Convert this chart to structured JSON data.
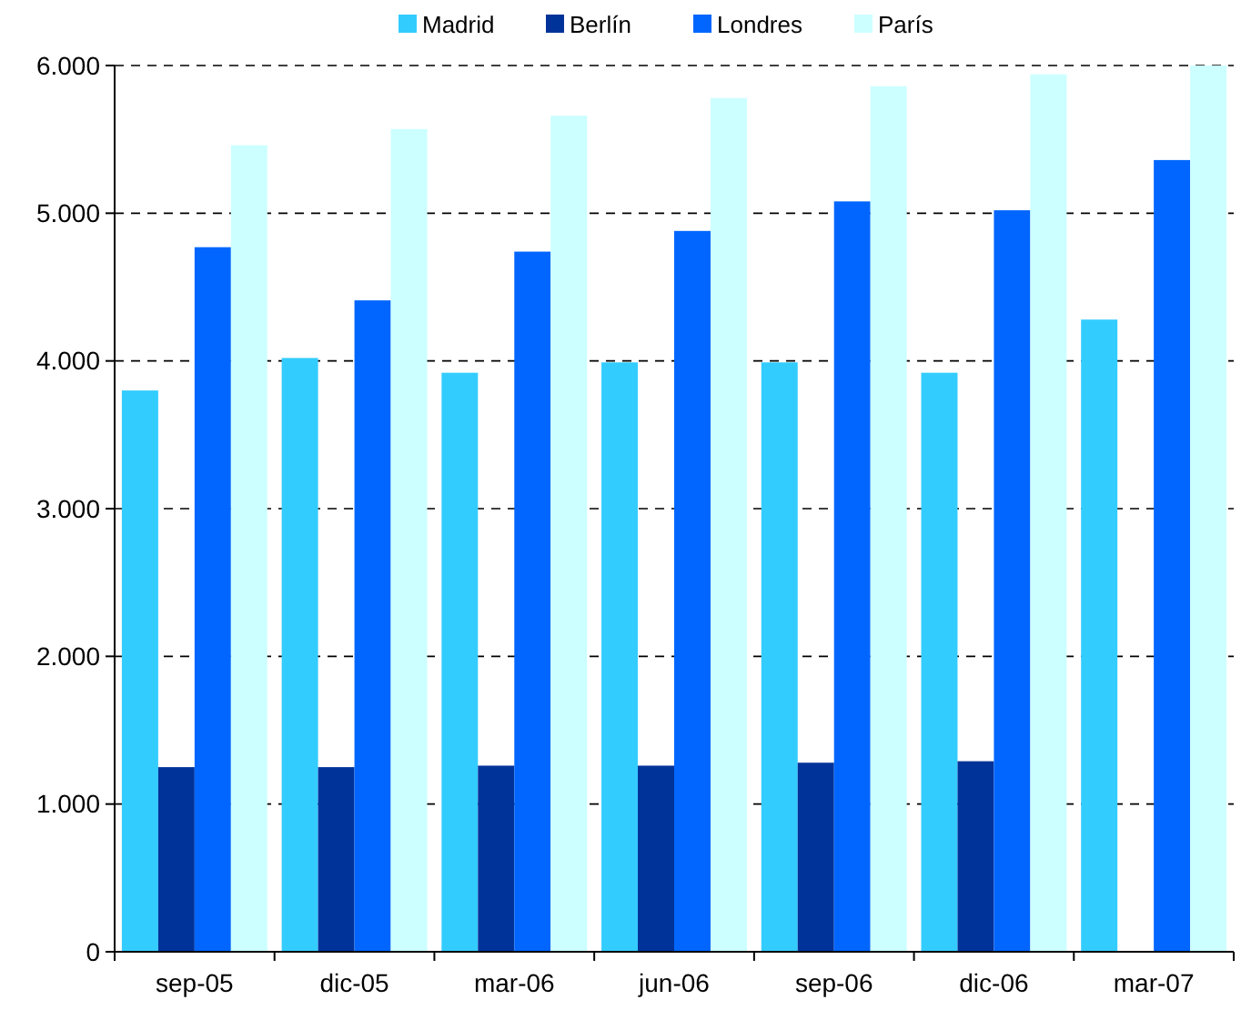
{
  "chart_data": {
    "type": "bar",
    "categories": [
      "sep-05",
      "dic-05",
      "mar-06",
      "jun-06",
      "sep-06",
      "dic-06",
      "mar-07"
    ],
    "series": [
      {
        "name": "Madrid",
        "color": "#33ccff",
        "values": [
          3800,
          4020,
          3920,
          3990,
          3990,
          3920,
          4280
        ]
      },
      {
        "name": "Berlín",
        "color": "#003399",
        "values": [
          1250,
          1250,
          1260,
          1260,
          1280,
          1290,
          null
        ]
      },
      {
        "name": "Londres",
        "color": "#0066ff",
        "values": [
          4770,
          4410,
          4740,
          4880,
          5080,
          5020,
          5360
        ]
      },
      {
        "name": "París",
        "color": "#ccffff",
        "values": [
          5460,
          5570,
          5660,
          5780,
          5860,
          5940,
          6000
        ]
      }
    ],
    "ylim": [
      0,
      6000
    ],
    "yticks": [
      {
        "value": 0,
        "label": "0"
      },
      {
        "value": 1000,
        "label": "1.000"
      },
      {
        "value": 2000,
        "label": "2.000"
      },
      {
        "value": 3000,
        "label": "3.000"
      },
      {
        "value": 4000,
        "label": "4.000"
      },
      {
        "value": 5000,
        "label": "5.000"
      },
      {
        "value": 6000,
        "label": "6.000"
      }
    ],
    "grid": "y",
    "legend": "top"
  }
}
